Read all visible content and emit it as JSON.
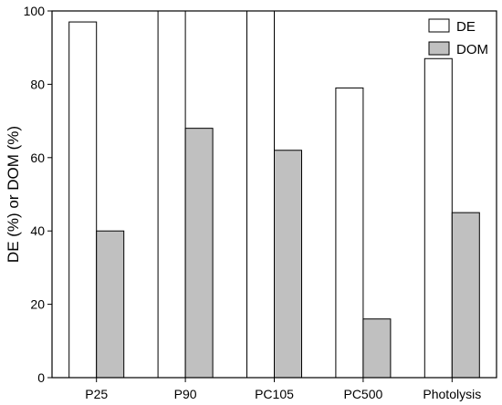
{
  "chart_data": {
    "type": "bar",
    "categories": [
      "P25",
      "P90",
      "PC105",
      "PC500",
      "Photolysis"
    ],
    "series": [
      {
        "name": "DE",
        "values": [
          97,
          100,
          100,
          79,
          87
        ],
        "color": "#ffffff"
      },
      {
        "name": "DOM",
        "values": [
          40,
          68,
          62,
          16,
          45
        ],
        "color": "#c0c0c0"
      }
    ],
    "title": "",
    "xlabel": "",
    "ylabel": "DE (%) or DOM (%)",
    "ylim": [
      0,
      100
    ],
    "yticks": [
      0,
      20,
      40,
      60,
      80,
      100
    ],
    "grid": false,
    "legend_position": "top-right"
  }
}
